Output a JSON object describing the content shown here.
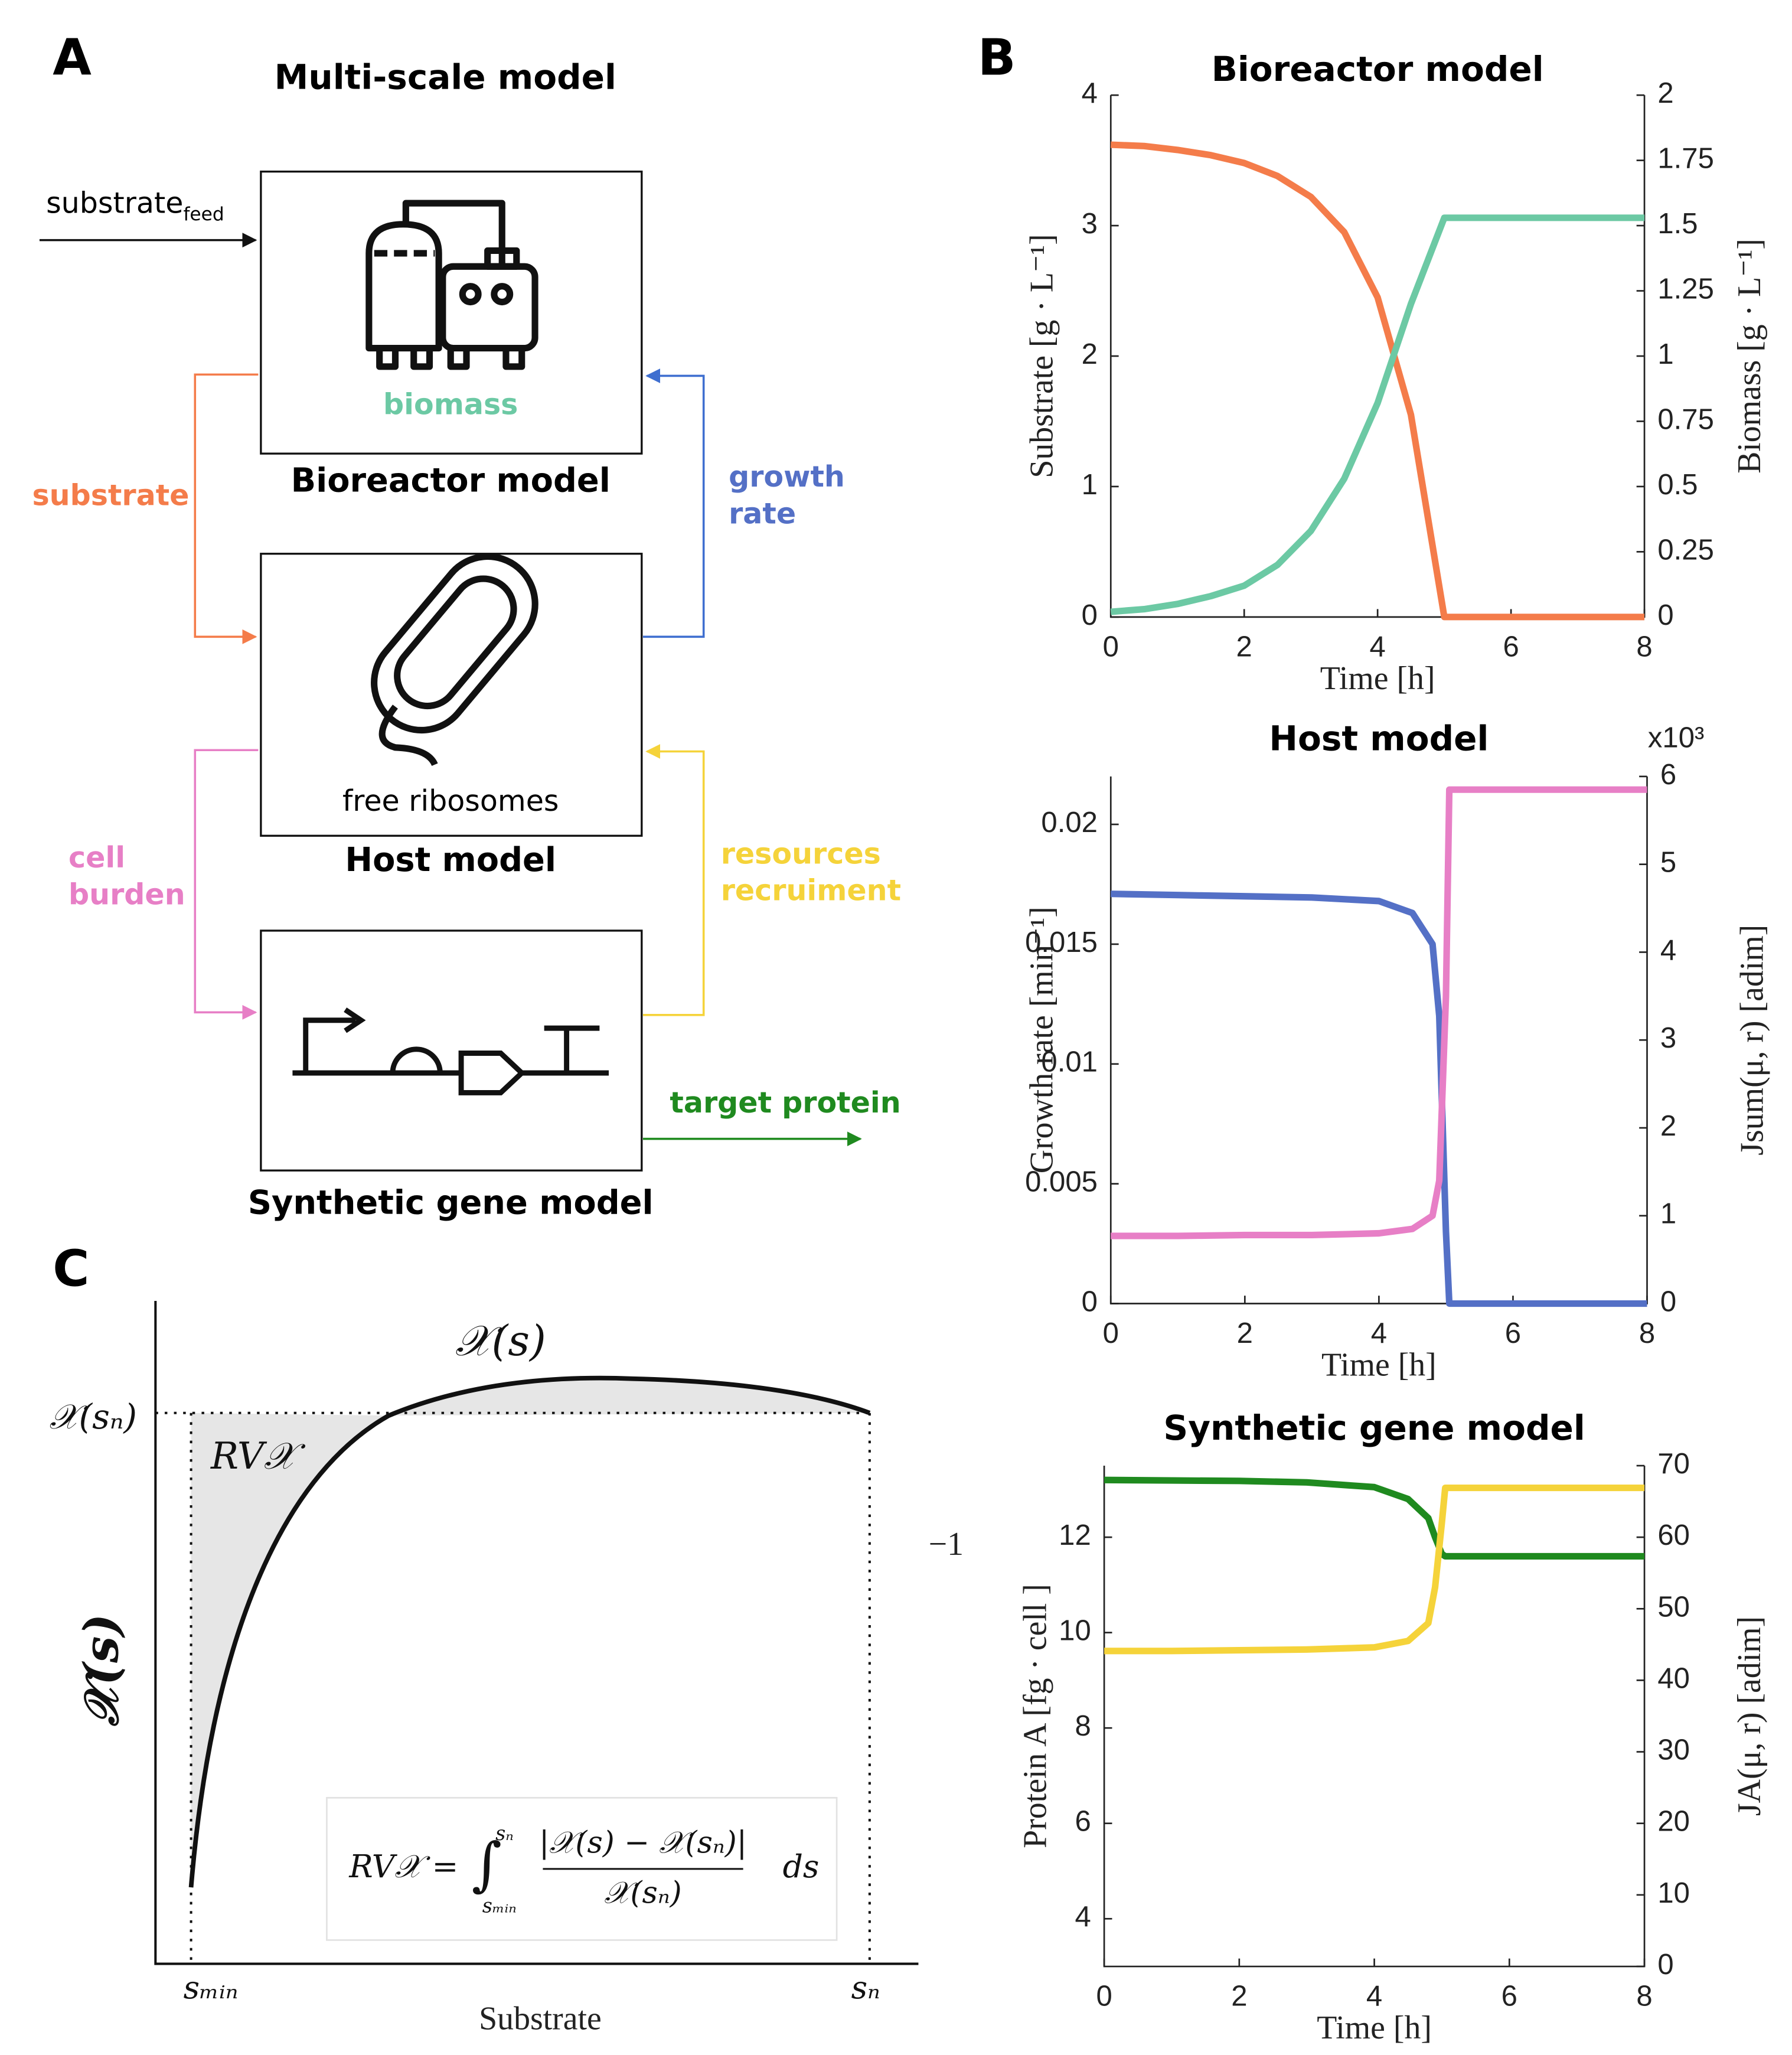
{
  "panel_a": {
    "label": "A",
    "title": "Multi-scale model",
    "feed_label": "substrate",
    "feed_subscript": "feed",
    "bioreactor_inner": "biomass",
    "bioreactor_caption": "Bioreactor model",
    "host_inner": "free ribosomes",
    "host_caption": "Host model",
    "gene_caption": "Synthetic gene model",
    "substrate": "substrate",
    "growth_rate": [
      "growth",
      "rate"
    ],
    "cell_burden": [
      "cell",
      "burden"
    ],
    "resources": [
      "resources",
      "recruiment"
    ],
    "target_protein": "target protein"
  },
  "panel_b_label": "B",
  "chart_data": [
    {
      "type": "line",
      "title": "Bioreactor model",
      "xlabel": "Time  [h]",
      "ylabel": "Substrate  [g · L⁻¹]",
      "y2label": "Biomass  [g · L⁻¹]",
      "x": [
        0,
        0.5,
        1,
        1.5,
        2,
        2.5,
        3,
        3.5,
        4,
        4.5,
        5,
        5.5,
        6,
        7,
        8
      ],
      "xlim": [
        0,
        8
      ],
      "xticks": [
        0,
        2,
        4,
        6,
        8
      ],
      "ylim": [
        0,
        4
      ],
      "yticks": [
        0,
        1,
        2,
        3,
        4
      ],
      "y2lim": [
        0,
        2
      ],
      "y2ticks": [
        0,
        0.25,
        0.5,
        0.75,
        1,
        1.25,
        1.5,
        1.75,
        2
      ],
      "series": [
        {
          "name": "Substrate",
          "color": "#f47c4a",
          "axis": "y",
          "values": [
            3.62,
            3.61,
            3.58,
            3.54,
            3.48,
            3.38,
            3.22,
            2.95,
            2.45,
            1.55,
            0,
            0,
            0,
            0,
            0
          ]
        },
        {
          "name": "Biomass",
          "color": "#6cc9a4",
          "axis": "y2",
          "values": [
            0.02,
            0.03,
            0.05,
            0.08,
            0.12,
            0.2,
            0.33,
            0.53,
            0.82,
            1.2,
            1.53,
            1.53,
            1.53,
            1.53,
            1.53
          ]
        }
      ]
    },
    {
      "type": "line",
      "title": "Host model",
      "xlabel": "Time  [h]",
      "ylabel": "Growth rate  [min⁻¹]",
      "y2label": "Jsum(μ, r)  [adim]",
      "y2_multiplier": "x10³",
      "x": [
        0,
        1,
        2,
        3,
        4,
        4.5,
        4.8,
        4.9,
        5,
        5.05,
        6,
        8
      ],
      "xlim": [
        0,
        8
      ],
      "xticks": [
        0,
        2,
        4,
        6,
        8
      ],
      "ylim": [
        0,
        0.022
      ],
      "yticks": [
        0,
        0.005,
        0.01,
        0.015,
        0.02
      ],
      "y2lim": [
        0,
        6
      ],
      "y2ticks": [
        0,
        1,
        2,
        3,
        4,
        5,
        6
      ],
      "series": [
        {
          "name": "Growth rate",
          "color": "#5470c6",
          "axis": "y",
          "values": [
            0.0171,
            0.01705,
            0.017,
            0.01695,
            0.0168,
            0.0163,
            0.015,
            0.012,
            0.003,
            0,
            0,
            0
          ]
        },
        {
          "name": "Jsum",
          "color": "#e77fc6",
          "axis": "y2",
          "values": [
            0.77,
            0.77,
            0.78,
            0.78,
            0.8,
            0.85,
            1.0,
            1.4,
            3.5,
            5.85,
            5.85,
            5.85
          ]
        }
      ]
    },
    {
      "type": "line",
      "title": "Synthetic gene model",
      "xlabel": "Time  [h]",
      "ylabel": "Protein A  [fg · cell  ]",
      "ylabel_superscript": "−1",
      "y2label": "JA(μ, r)  [adim]",
      "x": [
        0,
        1,
        2,
        3,
        4,
        4.5,
        4.8,
        4.9,
        5,
        5.05,
        6,
        8
      ],
      "xlim": [
        0,
        8
      ],
      "xticks": [
        0,
        2,
        4,
        6,
        8
      ],
      "ylim": [
        3,
        13.5
      ],
      "yticks": [
        4,
        6,
        8,
        10,
        12
      ],
      "y2lim": [
        0,
        70
      ],
      "y2ticks": [
        0,
        10,
        20,
        30,
        40,
        50,
        60,
        70
      ],
      "series": [
        {
          "name": "Protein A",
          "color": "#1f8a1f",
          "axis": "y",
          "values": [
            13.2,
            13.19,
            13.18,
            13.15,
            13.05,
            12.8,
            12.4,
            12.0,
            11.65,
            11.6,
            11.6,
            11.6
          ]
        },
        {
          "name": "JA",
          "color": "#f5d33a",
          "axis": "y2",
          "values": [
            44.1,
            44.1,
            44.2,
            44.3,
            44.6,
            45.5,
            48,
            53,
            62,
            66.9,
            66.9,
            66.9
          ]
        }
      ]
    }
  ],
  "panel_c": {
    "label": "C",
    "curve_label": "𝒳(s)",
    "level_label": "𝒳(sₙ)",
    "area_label": "RV𝒳",
    "ylabel": "𝒳(s)",
    "xlabel": "Substrate",
    "x_start": "sₘᵢₙ",
    "x_end": "sₙ",
    "formula": {
      "lhs": "RV𝒳 =",
      "integral": "∫",
      "upper": "sₙ",
      "lower": "sₘᵢₙ",
      "numerator": "|𝒳(s) − 𝒳(sₙ)|",
      "denominator": "𝒳(sₙ)",
      "tail": "ds"
    }
  }
}
